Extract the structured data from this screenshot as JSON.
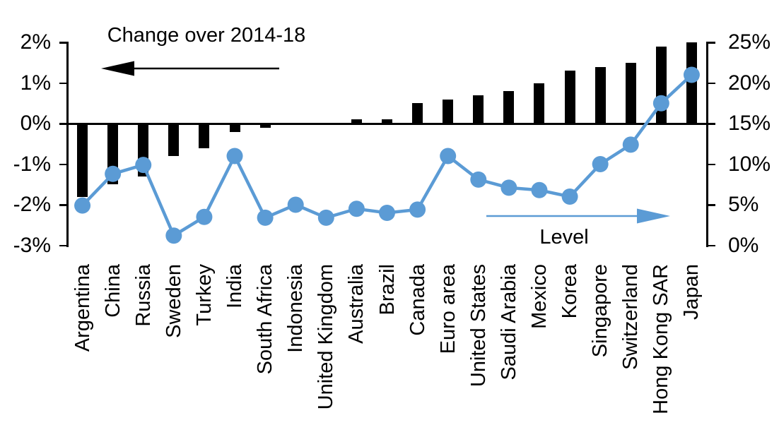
{
  "chart_data": {
    "type": "combo-bar-line",
    "title": "",
    "categories": [
      "Argentina",
      "China",
      "Russia",
      "Sweden",
      "Turkey",
      "India",
      "South Africa",
      "Indonesia",
      "United Kingdom",
      "Australia",
      "Brazil",
      "Canada",
      "Euro area",
      "United States",
      "Saudi Arabia",
      "Mexico",
      "Korea",
      "Singapore",
      "Switzerland",
      "Hong Kong SAR",
      "Japan"
    ],
    "series": [
      {
        "name": "Change over 2014-18",
        "type": "bar",
        "axis": "left",
        "unit": "%",
        "color": "#000000",
        "values": [
          -1.8,
          -1.5,
          -1.3,
          -0.8,
          -0.6,
          -0.2,
          -0.1,
          0,
          0,
          0.1,
          0.1,
          0.5,
          0.6,
          0.7,
          0.8,
          1.0,
          1.3,
          1.4,
          1.5,
          1.9,
          2.0
        ]
      },
      {
        "name": "Level",
        "type": "line",
        "axis": "right",
        "unit": "%",
        "color": "#5B9BD5",
        "values": [
          4.9,
          8.8,
          9.9,
          1.2,
          3.5,
          11,
          3.4,
          5,
          3.4,
          4.5,
          4,
          4.4,
          11,
          8.1,
          7.1,
          6.8,
          6,
          10,
          12.4,
          17.5,
          21
        ]
      }
    ],
    "left_axis": {
      "min": -3,
      "max": 2,
      "ticks": [
        2,
        1,
        0,
        -1,
        -2,
        -3
      ],
      "tick_labels": [
        "2%",
        "1%",
        "0%",
        "-1%",
        "-2%",
        "-3%"
      ]
    },
    "right_axis": {
      "min": 0,
      "max": 25,
      "ticks": [
        25,
        20,
        15,
        10,
        5,
        0
      ],
      "tick_labels": [
        "25%",
        "20%",
        "15%",
        "10%",
        "5%",
        "0%"
      ]
    },
    "grid": false,
    "legend_position": "in-plot-annotations",
    "background_color": "#ffffff"
  }
}
